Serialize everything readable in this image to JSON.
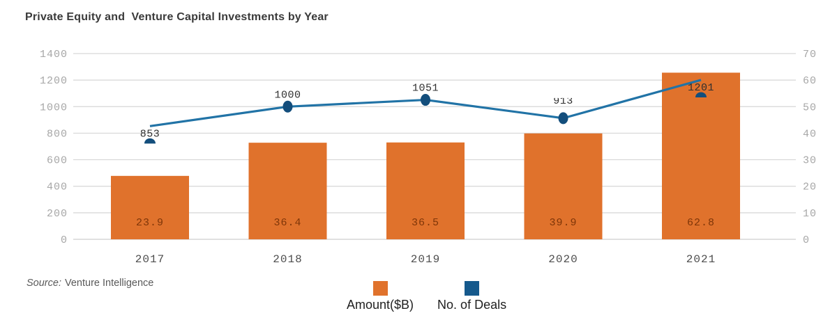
{
  "title": "Private Equity and  Venture Capital Investments by Year",
  "source": {
    "label": "Source:",
    "value": "Venture Intelligence"
  },
  "legend": [
    {
      "label": "Amount($B)",
      "color": "#E0722C"
    },
    {
      "label": "No. of Deals",
      "color": "#15598C"
    }
  ],
  "chart_data": {
    "type": "bar-line-combo",
    "title": "Private Equity and  Venture Capital Investments by Year",
    "categories": [
      "2017",
      "2018",
      "2019",
      "2020",
      "2021"
    ],
    "series": [
      {
        "name": "Amount($B)",
        "type": "bar",
        "axis": "right",
        "color": "#E0722C",
        "label_color": "#7E3508",
        "values": [
          23.9,
          36.4,
          36.5,
          39.9,
          62.8
        ]
      },
      {
        "name": "No. of Deals",
        "type": "line",
        "axis": "left",
        "line_color": "#2173A6",
        "marker_color": "#134E7C",
        "label_color": "#2F2F2F",
        "values": [
          853,
          1000,
          1051,
          913,
          1201
        ]
      }
    ],
    "left_axis": {
      "min": 0,
      "max": 1400,
      "step": 200,
      "ticks": [
        0,
        200,
        400,
        600,
        800,
        1000,
        1200,
        1400
      ]
    },
    "right_axis": {
      "min": 0,
      "max": 70,
      "step": 10,
      "ticks": [
        0,
        10,
        20,
        30,
        40,
        50,
        60,
        70
      ]
    },
    "grid": true,
    "legend_position": "bottom",
    "gridline_color": "#D6D6D6",
    "axis_label_color": "#A6A6A6",
    "x_label_color": "#4D4D4D",
    "source_note": "Source: Venture Intelligence"
  }
}
